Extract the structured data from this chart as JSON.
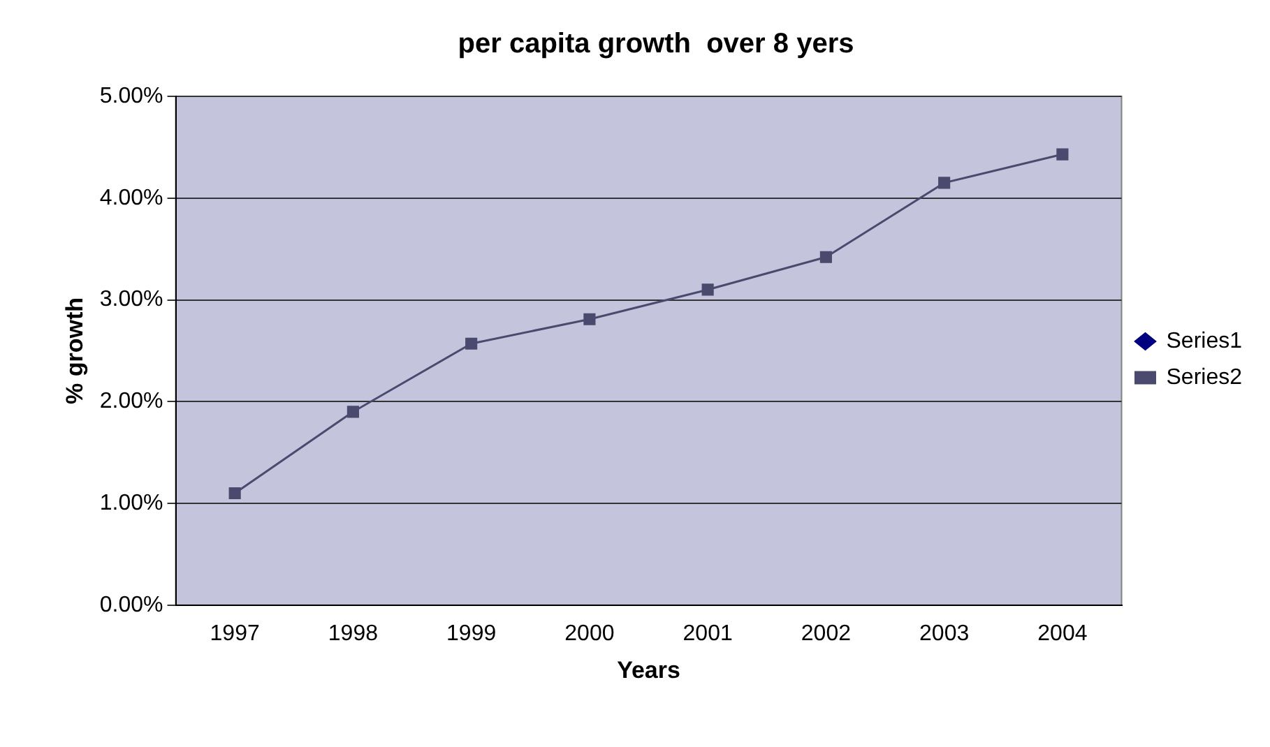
{
  "chart_data": {
    "type": "line",
    "title": "per capita growth  over 8 yers",
    "xlabel": "Years",
    "ylabel": "% growth",
    "categories": [
      "1997",
      "1998",
      "1999",
      "2000",
      "2001",
      "2002",
      "2003",
      "2004"
    ],
    "series": [
      {
        "name": "Series1",
        "color": "#000080",
        "marker": "diamond",
        "values": [
          null,
          null,
          null,
          null,
          null,
          null,
          null,
          null
        ]
      },
      {
        "name": "Series2",
        "color": "#4a4a6e",
        "marker": "square",
        "values": [
          1.1,
          1.9,
          2.57,
          2.81,
          3.1,
          3.42,
          4.15,
          4.43
        ]
      }
    ],
    "ylim": [
      0,
      5
    ],
    "yticks": [
      {
        "value": 0,
        "label": "0.00%"
      },
      {
        "value": 1,
        "label": "1.00%"
      },
      {
        "value": 2,
        "label": "2.00%"
      },
      {
        "value": 3,
        "label": "3.00%"
      },
      {
        "value": 4,
        "label": "4.00%"
      },
      {
        "value": 5,
        "label": "5.00%"
      }
    ],
    "grid": "y",
    "legend": "right",
    "line_style": "solid"
  }
}
